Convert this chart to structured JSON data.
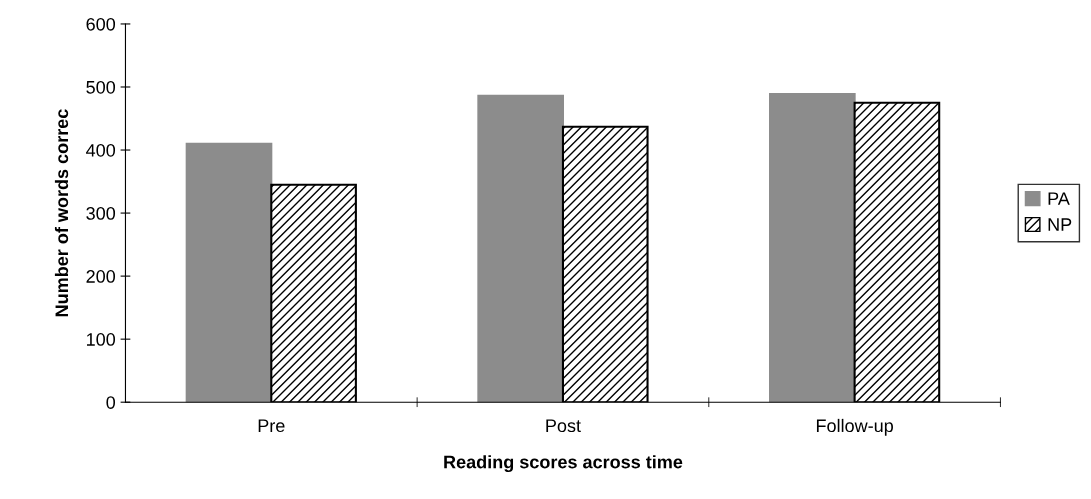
{
  "chart_data": {
    "type": "bar",
    "xlabel": "Reading scores across time",
    "ylabel": "Number of words correc",
    "categories": [
      "Pre",
      "Post",
      "Follow-up"
    ],
    "series": [
      {
        "name": "PA",
        "color": "#8c8c8c",
        "values": [
          410,
          486,
          489
        ]
      },
      {
        "name": "NP",
        "color": "#000000",
        "values": [
          345,
          437,
          475
        ]
      }
    ],
    "ylim": [
      0,
      600
    ],
    "yticks": [
      0,
      100,
      200,
      300,
      400,
      500,
      600
    ],
    "grid": false,
    "legend": "right"
  }
}
